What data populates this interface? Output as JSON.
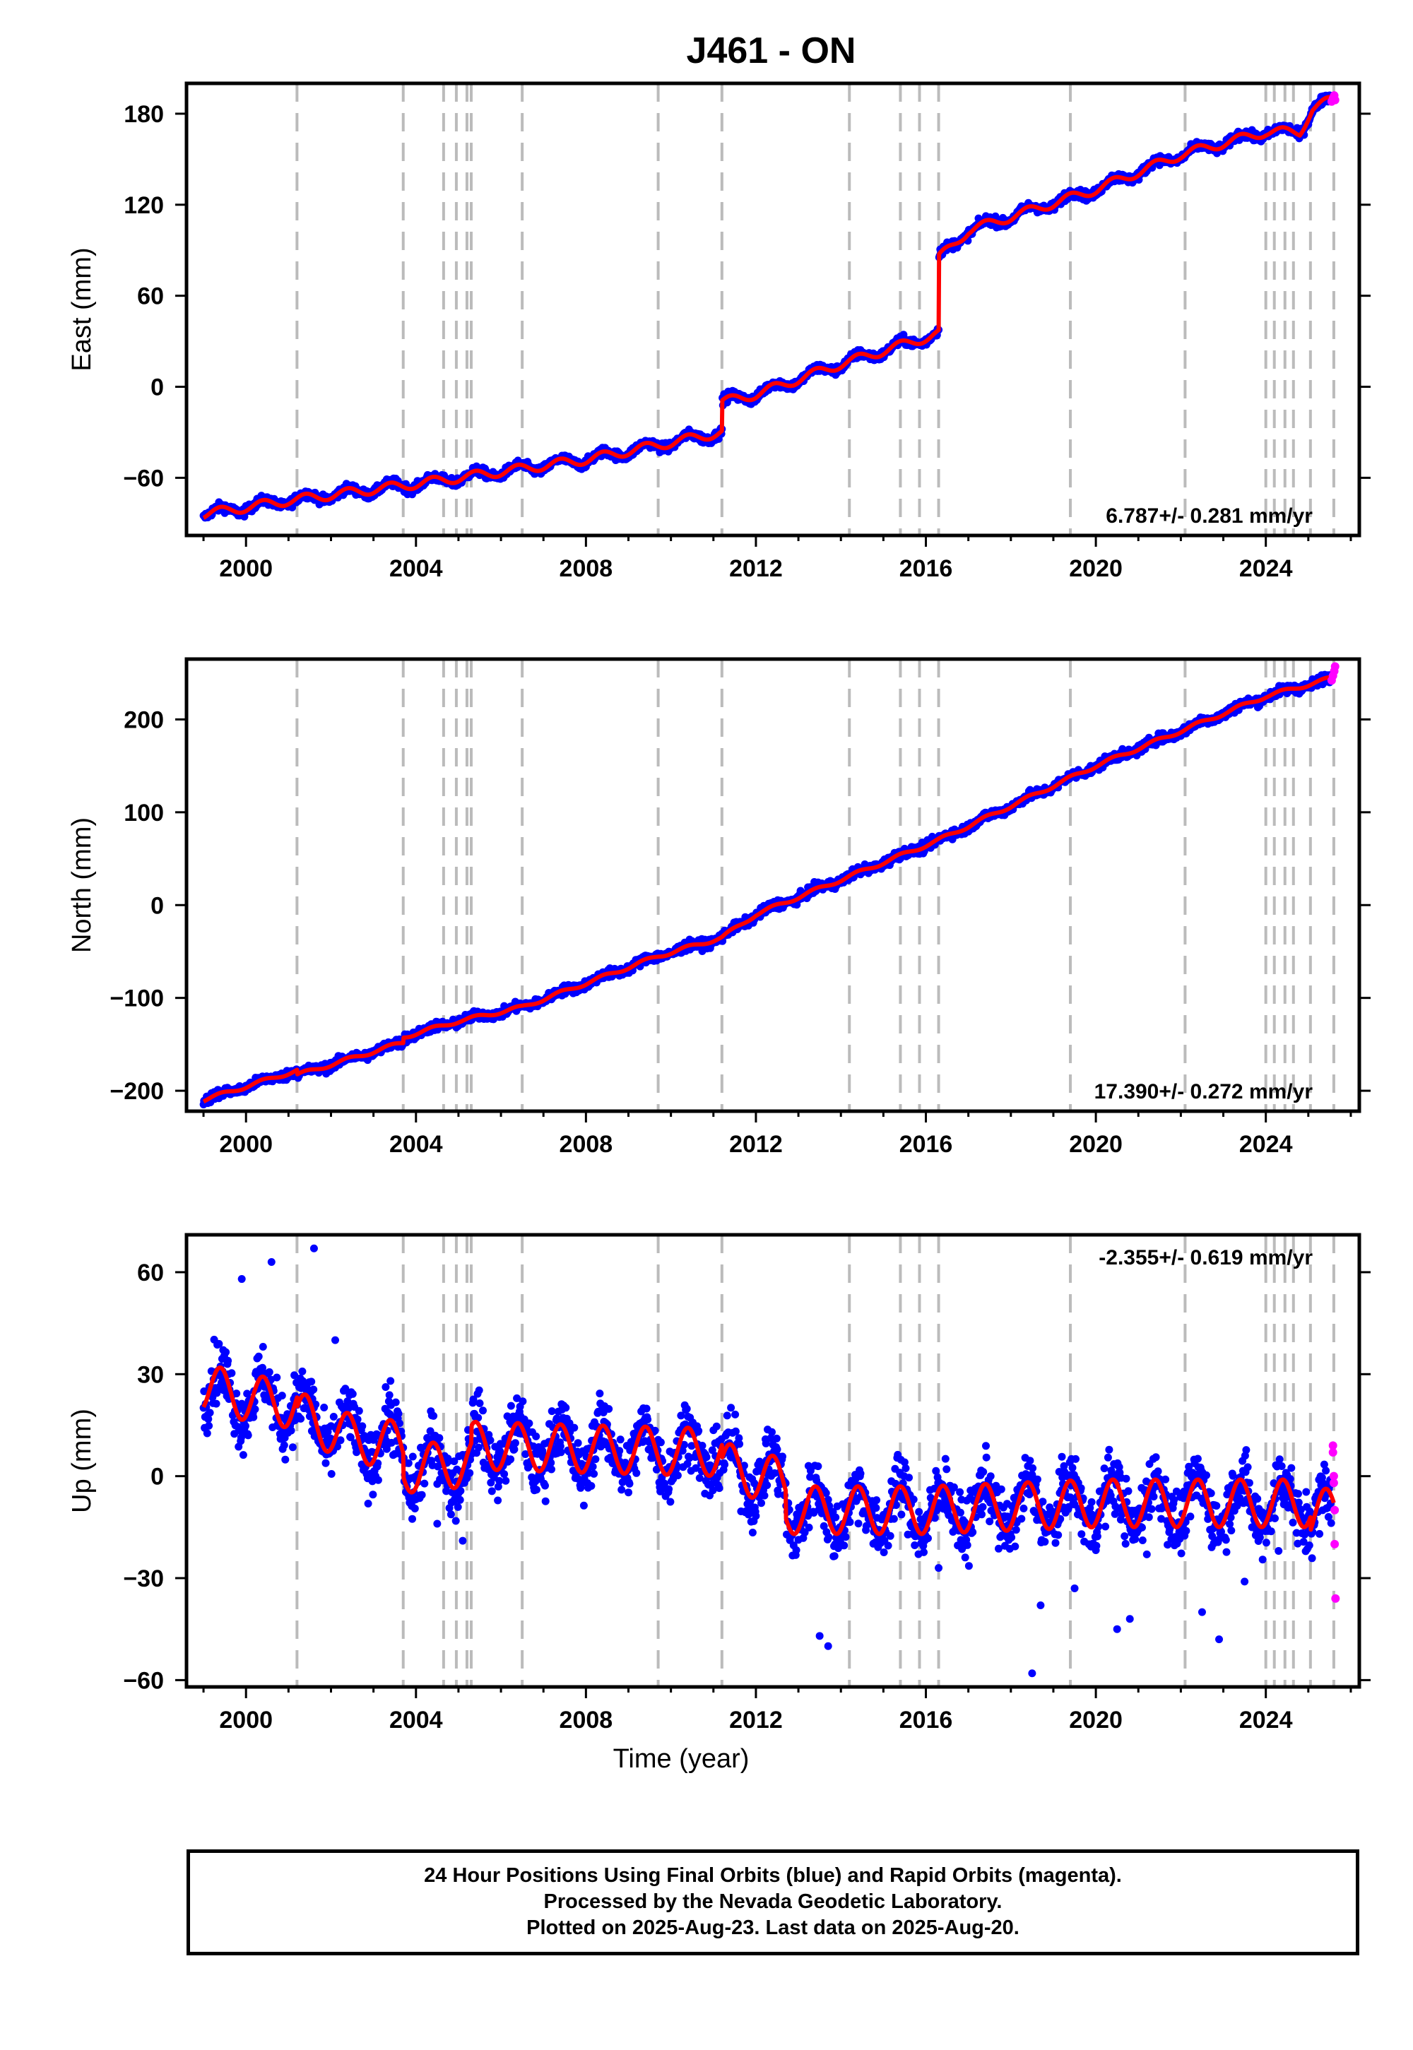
{
  "title": "J461 - ON",
  "x_axis_label": "Time (year)",
  "x_ticks": [
    2000,
    2004,
    2008,
    2012,
    2016,
    2020,
    2024
  ],
  "event_lines": [
    2001.2,
    2003.7,
    2004.65,
    2004.95,
    2005.2,
    2005.3,
    2006.5,
    2009.7,
    2011.2,
    2014.2,
    2015.4,
    2015.85,
    2016.3,
    2019.4,
    2022.1,
    2024.0,
    2024.2,
    2024.45,
    2024.65,
    2025.05,
    2025.6
  ],
  "colors": {
    "final_orbits": "#0000ff",
    "rapid_orbits": "#ff00ff",
    "model": "#ff0000",
    "event_line": "#bbbbbb"
  },
  "chart_data": [
    {
      "type": "scatter",
      "name": "east",
      "ylabel": "East (mm)",
      "yticks": [
        -60,
        0,
        60,
        120,
        180
      ],
      "ylim": [
        -98,
        200
      ],
      "xlim": [
        1998.6,
        2026.2
      ],
      "rate_text": "6.787+/- 0.281 mm/yr",
      "rate_position": "bottom-right",
      "grid": false,
      "model_trend": [
        [
          1999.0,
          -84
        ],
        [
          2001.0,
          -75
        ],
        [
          2004.0,
          -64
        ],
        [
          2008.0,
          -48
        ],
        [
          2011.2,
          -30
        ],
        [
          2011.21,
          -10
        ],
        [
          2012.0,
          -5
        ],
        [
          2014.0,
          15
        ],
        [
          2016.3,
          35
        ],
        [
          2016.31,
          85
        ],
        [
          2017.0,
          103
        ],
        [
          2020.0,
          130
        ],
        [
          2022.0,
          153
        ],
        [
          2024.0,
          168
        ],
        [
          2024.8,
          168
        ],
        [
          2025.1,
          183
        ],
        [
          2025.6,
          190
        ]
      ],
      "seasonal_amplitude": 3,
      "scatter_noise": 3,
      "rapid_points": [
        [
          2025.55,
          188
        ],
        [
          2025.58,
          190
        ],
        [
          2025.61,
          192
        ],
        [
          2025.63,
          189
        ]
      ]
    },
    {
      "type": "scatter",
      "name": "north",
      "ylabel": "North (mm)",
      "yticks": [
        -200,
        -100,
        0,
        100,
        200
      ],
      "ylim": [
        -222,
        265
      ],
      "xlim": [
        1998.6,
        2026.2
      ],
      "rate_text": "17.390+/- 0.272 mm/yr",
      "rate_position": "bottom-right",
      "grid": false,
      "model_trend": [
        [
          1999.0,
          -210
        ],
        [
          2001.2,
          -178
        ],
        [
          2001.21,
          -183
        ],
        [
          2003.7,
          -148
        ],
        [
          2003.71,
          -142
        ],
        [
          2005.0,
          -125
        ],
        [
          2006.5,
          -110
        ],
        [
          2009.7,
          -55
        ],
        [
          2011.2,
          -35
        ],
        [
          2012.0,
          -10
        ],
        [
          2016.3,
          70
        ],
        [
          2020.0,
          150
        ],
        [
          2024.0,
          225
        ],
        [
          2025.6,
          245
        ]
      ],
      "seasonal_amplitude": 2,
      "scatter_noise": 5,
      "rapid_points": [
        [
          2025.55,
          242
        ],
        [
          2025.58,
          247
        ],
        [
          2025.61,
          252
        ],
        [
          2025.63,
          257
        ]
      ]
    },
    {
      "type": "scatter",
      "name": "up",
      "ylabel": "Up (mm)",
      "yticks": [
        -60,
        -30,
        0,
        30,
        60
      ],
      "ylim": [
        -62,
        71
      ],
      "xlim": [
        1998.6,
        2026.2
      ],
      "rate_text": "-2.355+/- 0.619 mm/yr",
      "rate_position": "top-right",
      "grid": false,
      "model_trend": [
        [
          1999.0,
          26
        ],
        [
          2000.5,
          22
        ],
        [
          2001.2,
          21
        ],
        [
          2001.21,
          18
        ],
        [
          2002.5,
          11
        ],
        [
          2003.7,
          9
        ],
        [
          2003.71,
          2
        ],
        [
          2005.3,
          4
        ],
        [
          2005.31,
          9
        ],
        [
          2008.0,
          8
        ],
        [
          2011.2,
          7
        ],
        [
          2011.21,
          3
        ],
        [
          2012.7,
          -2
        ],
        [
          2012.71,
          -10
        ],
        [
          2016.0,
          -10
        ],
        [
          2020.0,
          -8
        ],
        [
          2024.0,
          -8
        ],
        [
          2025.05,
          -8
        ],
        [
          2025.06,
          -12
        ],
        [
          2025.6,
          -10
        ]
      ],
      "seasonal_amplitude": 7,
      "scatter_noise": 9,
      "outliers": [
        [
          1999.9,
          58
        ],
        [
          2000.6,
          63
        ],
        [
          2001.6,
          67
        ],
        [
          2002.1,
          40
        ],
        [
          2003.4,
          28
        ],
        [
          2004.5,
          -14
        ],
        [
          2005.1,
          -19
        ],
        [
          2013.5,
          -47
        ],
        [
          2013.7,
          -50
        ],
        [
          2016.3,
          -27
        ],
        [
          2018.5,
          -58
        ],
        [
          2018.7,
          -38
        ],
        [
          2019.5,
          -33
        ],
        [
          2020.5,
          -45
        ],
        [
          2020.8,
          -42
        ],
        [
          2021.2,
          -23
        ],
        [
          2022.5,
          -40
        ],
        [
          2022.9,
          -48
        ],
        [
          2023.5,
          -31
        ],
        [
          2024.3,
          -22
        ]
      ],
      "rapid_points": [
        [
          2025.58,
          9
        ],
        [
          2025.58,
          7
        ],
        [
          2025.6,
          0
        ],
        [
          2025.6,
          -2
        ],
        [
          2025.62,
          -10
        ],
        [
          2025.62,
          -20
        ],
        [
          2025.64,
          -36
        ]
      ]
    }
  ],
  "footer": {
    "line1": "24 Hour Positions Using Final Orbits (blue) and Rapid Orbits (magenta).",
    "line2": "Processed by the Nevada Geodetic Laboratory.",
    "line3": "Plotted on 2025-Aug-23. Last data on 2025-Aug-20."
  }
}
